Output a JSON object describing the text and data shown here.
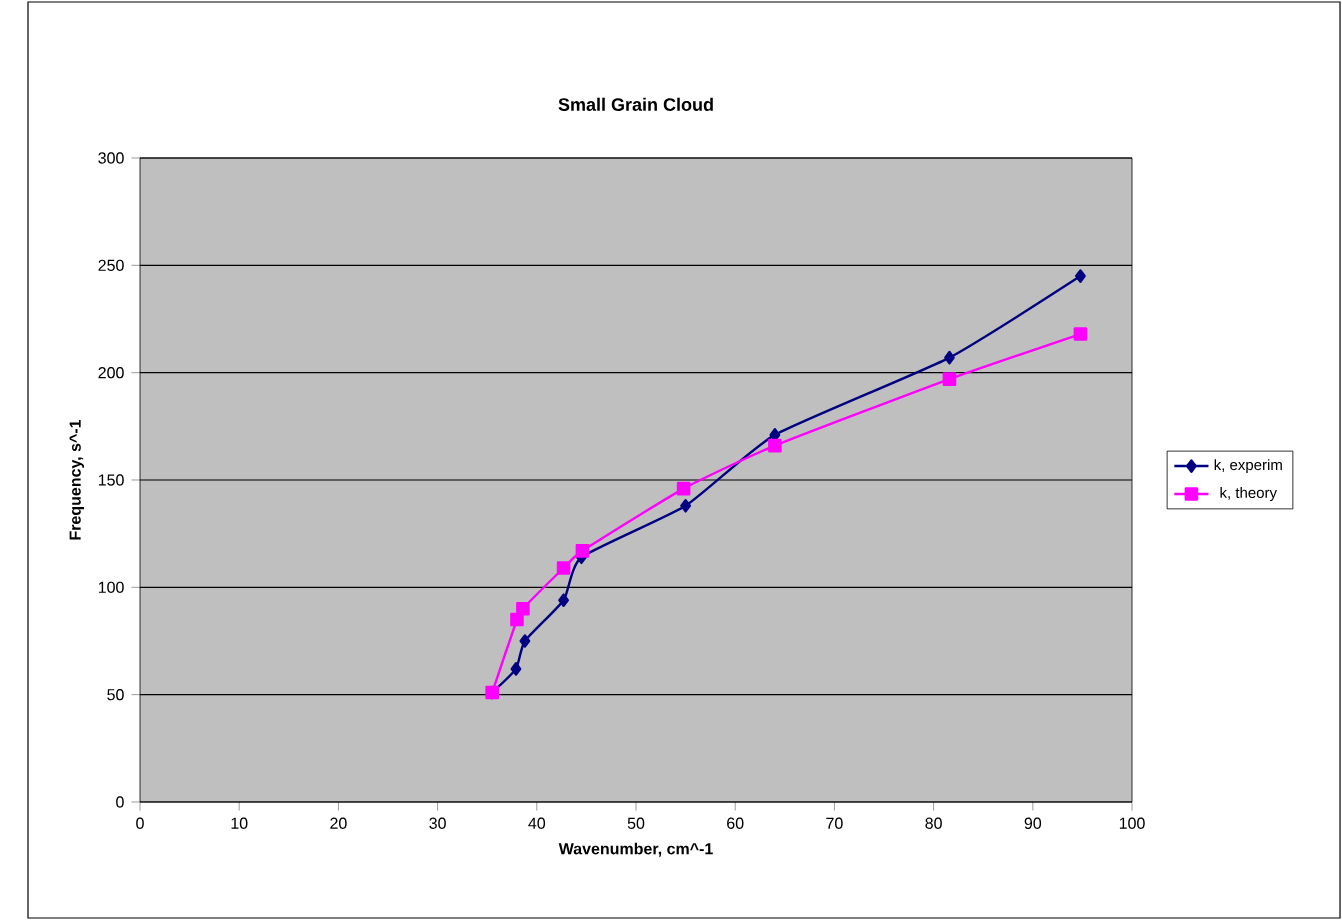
{
  "chart_data": {
    "type": "line",
    "title": "Small Grain Cloud",
    "xlabel": "Wavenumber, cm^-1",
    "ylabel": "Frequency, s^-1",
    "series": [
      {
        "name": "k, experim",
        "color": "#000080",
        "marker": "diamond",
        "x": [
          35.5,
          37.9,
          38.8,
          42.7,
          44.5,
          55,
          64,
          81.6,
          94.8
        ],
        "values": [
          51,
          62,
          75,
          94,
          114,
          138,
          171,
          207,
          245
        ]
      },
      {
        "name": "k, theory",
        "color": "#ff00ff",
        "marker": "square",
        "x": [
          35.5,
          38,
          38.6,
          42.7,
          44.6,
          54.8,
          64,
          81.6,
          94.8
        ],
        "values": [
          51,
          85,
          90,
          109,
          117,
          146,
          166,
          197,
          218
        ]
      }
    ],
    "xlim": [
      0,
      100
    ],
    "ylim": [
      0,
      300
    ],
    "xticks": [
      0,
      10,
      20,
      30,
      40,
      50,
      60,
      70,
      80,
      90,
      100
    ],
    "yticks": [
      0,
      50,
      100,
      150,
      200,
      250,
      300
    ],
    "grid": "y",
    "legend": "right"
  }
}
